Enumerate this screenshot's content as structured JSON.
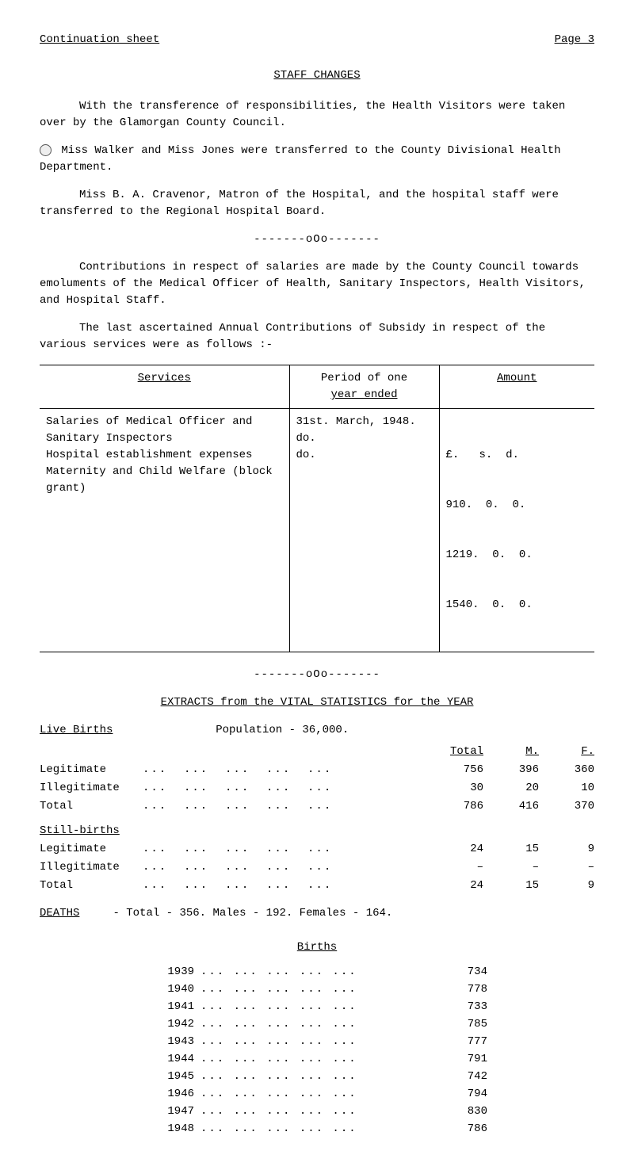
{
  "header": {
    "left": "Continuation sheet",
    "right": "Page 3"
  },
  "title": "STAFF CHANGES",
  "paragraphs": {
    "p1": "With the transference of responsibilities, the Health Visitors were taken over by the Glamorgan County Council.",
    "p2": "Miss Walker and Miss Jones were transferred to the County Divisional Health Department.",
    "p3": "Miss B. A. Cravenor, Matron of the Hospital, and the hospital staff were transferred to the Regional Hospital Board.",
    "p4": "Contributions in respect of salaries are made by the County Council towards emoluments of the Medical Officer of Health, Sanitary Inspectors, Health Visitors, and Hospital Staff.",
    "p5": "The last ascertained Annual Contributions of Subsidy in respect of the various services were as follows :-"
  },
  "ooo": "-------oOo-------",
  "services_table": {
    "headers": [
      "Services",
      "Period of one year ended",
      "Amount"
    ],
    "amount_header_line": "£.   s.  d.",
    "rows": [
      {
        "service": "Salaries of Medical Officer and Sanitary Inspectors",
        "period": "31st. March, 1948.",
        "amount": "910.  0.  0."
      },
      {
        "service": "Hospital establishment expenses",
        "period": "do.",
        "amount": "1219.  0.  0."
      },
      {
        "service": "Maternity and Child Welfare (block grant)",
        "period": "do.",
        "amount": "1540.  0.  0."
      }
    ]
  },
  "extracts_title": "EXTRACTS from the VITAL STATISTICS for the YEAR",
  "population_line": "Population  -  36,000.",
  "live_births_label": "Live Births",
  "vitals_headers": {
    "total": "Total",
    "m": "M.",
    "f": "F."
  },
  "dots": "...  ...  ...  ...  ...",
  "live_births": {
    "rows": [
      {
        "label": "Legitimate",
        "total": "756",
        "m": "396",
        "f": "360"
      },
      {
        "label": "Illegitimate",
        "total": "30",
        "m": "20",
        "f": "10"
      },
      {
        "label": "Total",
        "total": "786",
        "m": "416",
        "f": "370"
      }
    ]
  },
  "still_births_label": "Still-births",
  "still_births": {
    "rows": [
      {
        "label": "Legitimate",
        "total": "24",
        "m": "15",
        "f": "9"
      },
      {
        "label": "Illegitimate",
        "total": "–",
        "m": "–",
        "f": "–"
      },
      {
        "label": "Total",
        "total": "24",
        "m": "15",
        "f": "9"
      }
    ]
  },
  "deaths": {
    "label": "DEATHS",
    "text": "-  Total - 356.     Males - 192.   Females - 164."
  },
  "births_title": "Births",
  "birth_dots": "...  ...  ...  ...  ...",
  "births_by_year": [
    {
      "year": "1939",
      "val": "734"
    },
    {
      "year": "1940",
      "val": "778"
    },
    {
      "year": "1941",
      "val": "733"
    },
    {
      "year": "1942",
      "val": "785"
    },
    {
      "year": "1943",
      "val": "777"
    },
    {
      "year": "1944",
      "val": "791"
    },
    {
      "year": "1945",
      "val": "742"
    },
    {
      "year": "1946",
      "val": "794"
    },
    {
      "year": "1947",
      "val": "830"
    },
    {
      "year": "1948",
      "val": "786"
    }
  ]
}
